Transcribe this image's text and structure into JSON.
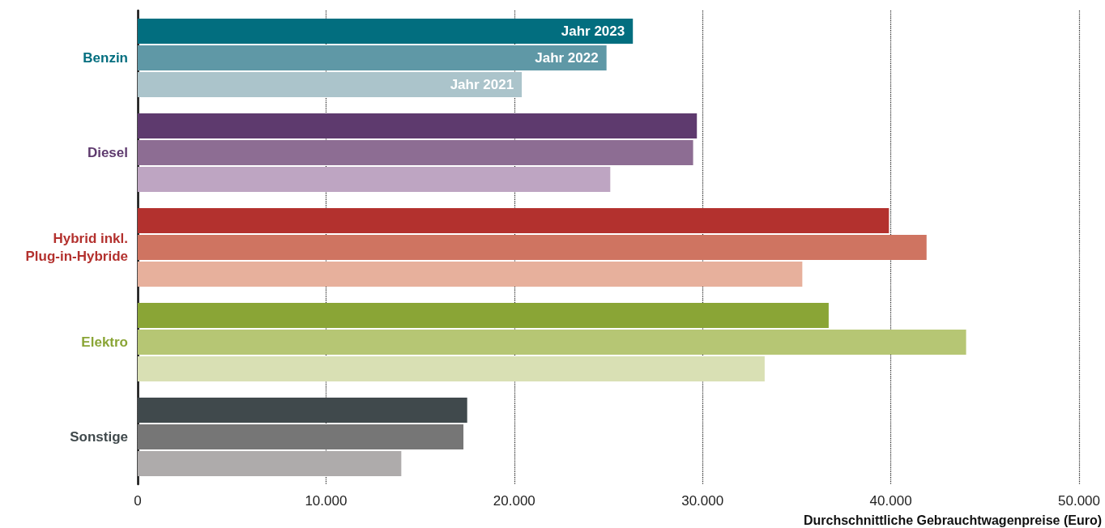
{
  "chart_data": {
    "type": "bar",
    "orientation": "horizontal",
    "xlabel": "Durchschnittliche Gebrauchtwagenpreise (Euro)",
    "categories": [
      "Benzin",
      "Diesel",
      "Hybrid inkl.\nPlug-in-Hybride",
      "Elektro",
      "Sonstige"
    ],
    "series": [
      {
        "name": "Jahr 2023",
        "colors": [
          "#026e7f",
          "#5e3a6e",
          "#b3312e",
          "#8aa536",
          "#40494c"
        ],
        "values": [
          26300,
          29700,
          39900,
          36700,
          17500
        ]
      },
      {
        "name": "Jahr 2022",
        "colors": [
          "#5f98a6",
          "#8d6d93",
          "#cf7461",
          "#b6c674",
          "#767676"
        ],
        "values": [
          24900,
          29500,
          41900,
          44000,
          17300
        ]
      },
      {
        "name": "Jahr 2021",
        "colors": [
          "#abc4cb",
          "#bea5c2",
          "#e7b09c",
          "#d9e0b4",
          "#aeabab"
        ],
        "values": [
          20400,
          25100,
          35300,
          33300,
          14000
        ]
      }
    ],
    "xlim": [
      0,
      50000
    ],
    "xticks": [
      0,
      {
        "value": 10000,
        "label": "10.000"
      },
      {
        "value": 20000,
        "label": "20.000"
      },
      {
        "value": 30000,
        "label": "30.000"
      },
      {
        "value": 40000,
        "label": "40.000"
      },
      {
        "value": 50000,
        "label": "50.000"
      }
    ],
    "grid": "x",
    "legend": false
  }
}
